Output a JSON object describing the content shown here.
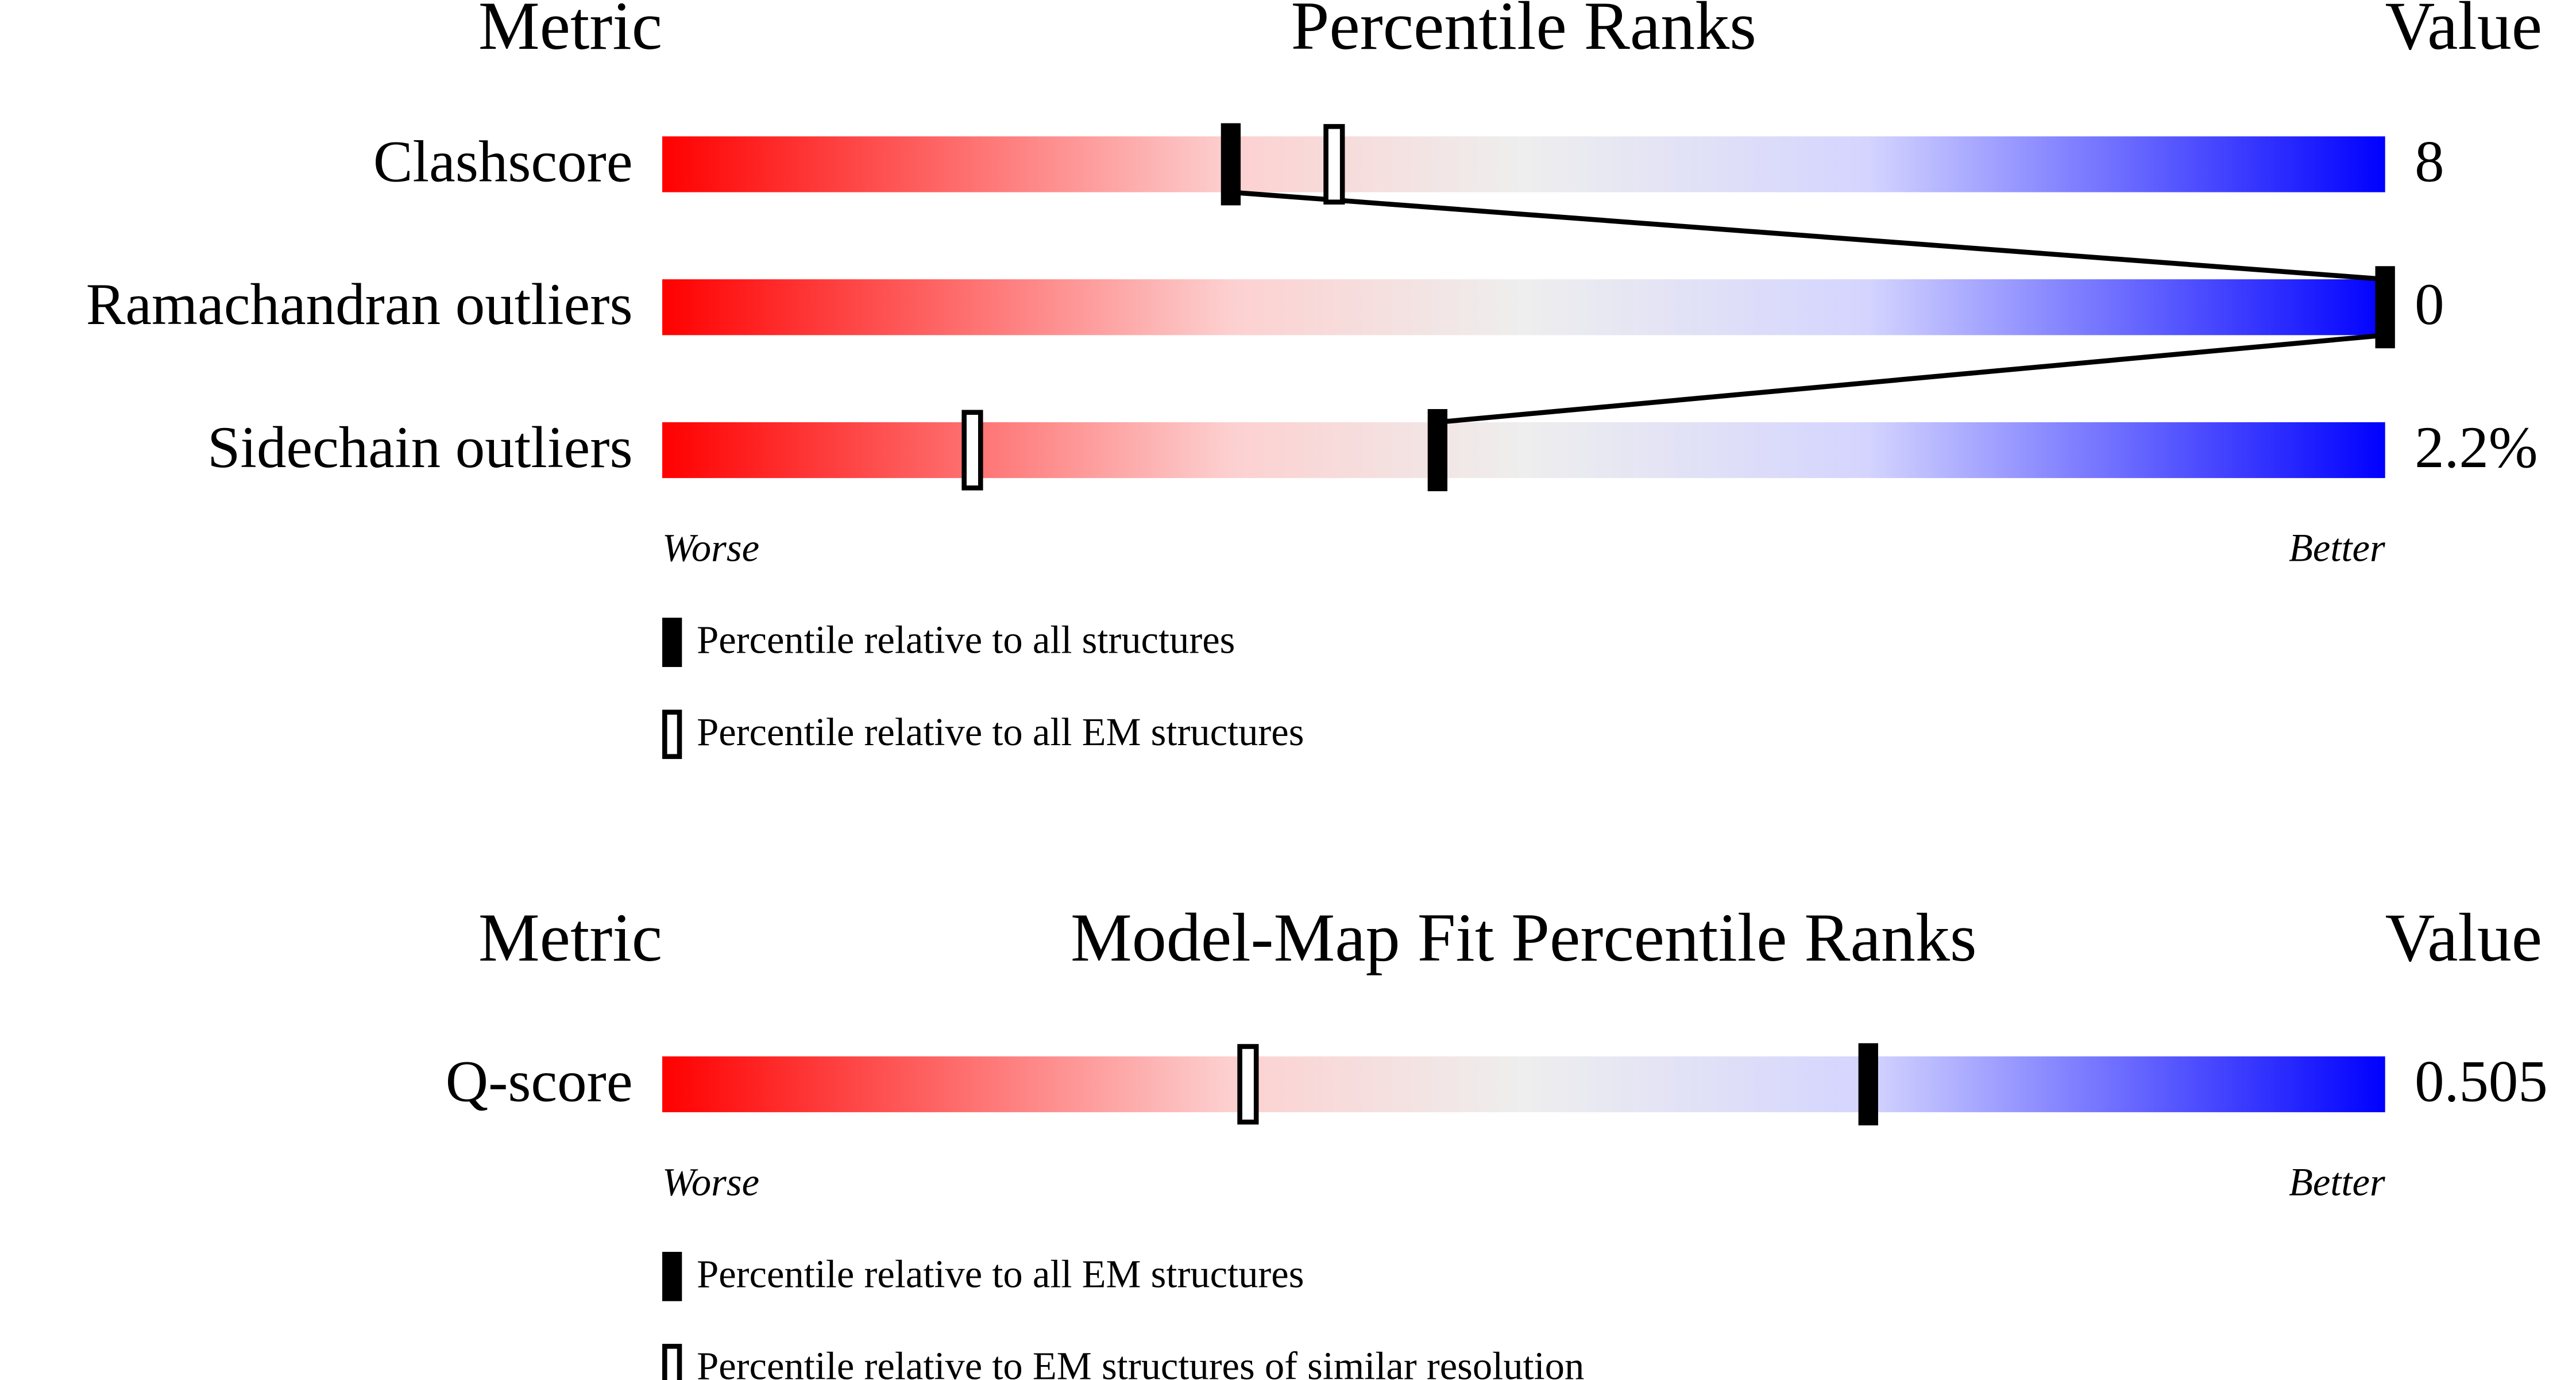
{
  "chart_data": [
    {
      "type": "percentile",
      "column_headers": [
        "Metric",
        "Percentile Ranks",
        "Value"
      ],
      "categories": [
        "Clashscore",
        "Ramachandran outliers",
        "Sidechain outliers"
      ],
      "metric_values": [
        "8",
        "0",
        "2.2%"
      ],
      "series": [
        {
          "name": "Percentile relative to all structures",
          "style": "filled",
          "color": "#000000",
          "values": [
            33,
            100,
            45
          ]
        },
        {
          "name": "Percentile relative to all EM structures",
          "style": "hollow",
          "color": "#000000",
          "values": [
            39,
            null,
            18
          ]
        }
      ],
      "xlim": [
        0,
        100
      ],
      "axis_labels": [
        "Worse",
        "Better"
      ],
      "connect_series": 0
    },
    {
      "type": "percentile",
      "column_headers": [
        "Metric",
        "Model-Map Fit Percentile Ranks",
        "Value"
      ],
      "categories": [
        "Q-score"
      ],
      "metric_values": [
        "0.505"
      ],
      "series": [
        {
          "name": "Percentile relative to all EM structures",
          "style": "filled",
          "color": "#000000",
          "values": [
            70
          ]
        },
        {
          "name": "Percentile relative to EM structures of similar resolution",
          "style": "hollow",
          "color": "#000000",
          "values": [
            34
          ]
        }
      ],
      "xlim": [
        0,
        100
      ],
      "axis_labels": [
        "Worse",
        "Better"
      ],
      "connect_series": 0
    }
  ]
}
